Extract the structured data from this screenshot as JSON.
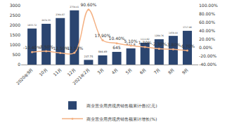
{
  "chart_data": {
    "type": "bar",
    "categories": [
      "2020年9月",
      "10月",
      "11月",
      "12月",
      "2021年2月",
      "3月",
      "4月",
      "5月",
      "6月",
      "7月",
      "8月",
      "9月"
    ],
    "series": [
      {
        "name": "商业营业用房现房销售额累计值(亿元)",
        "type": "bar",
        "color": "#2b4570",
        "values": [
          1833.72,
          2074.35,
          2364.87,
          2759.41,
          237.75,
          466.69,
          645.0,
          822.8,
          1111.62,
          1289.76,
          1459.44,
          1717.96
        ]
      },
      {
        "name": "商业营业用房现房销售额累计增长(%)",
        "type": "line",
        "axis": "y2",
        "color": "#f4b183",
        "marker": "circle",
        "values": [
          -10.4,
          -8.5,
          -12.5,
          -12.1,
          90.6,
          17.9,
          10.4,
          5.1,
          1.7,
          -2.3,
          -3.8,
          -6.7
        ],
        "value_labels": [
          "-10.40%",
          "-8.50%",
          "-12.50%",
          "-12.10%",
          "90.60%",
          "17.90%",
          "10.40%",
          "5.10%",
          "1.70%",
          "-2.30%",
          "-3.80%",
          "-6.70%"
        ]
      }
    ],
    "ylim": [
      0,
      3000
    ],
    "yticks": [
      0,
      500,
      1000,
      1500,
      2000,
      2500,
      3000
    ],
    "y2lim": [
      -40,
      100
    ],
    "y2ticks": [
      {
        "value": -40,
        "label": "-40.00%"
      },
      {
        "value": -20,
        "label": "-20.00%"
      },
      {
        "value": 0,
        "label": "0.00%"
      },
      {
        "value": 20,
        "label": "20.00%"
      },
      {
        "value": 40,
        "label": "40.00%"
      },
      {
        "value": 60,
        "label": "60.00%"
      },
      {
        "value": 80,
        "label": "80.00%"
      },
      {
        "value": 100,
        "label": "100.00%"
      }
    ],
    "grid": false,
    "legend": "bottom",
    "data_labels": true
  }
}
